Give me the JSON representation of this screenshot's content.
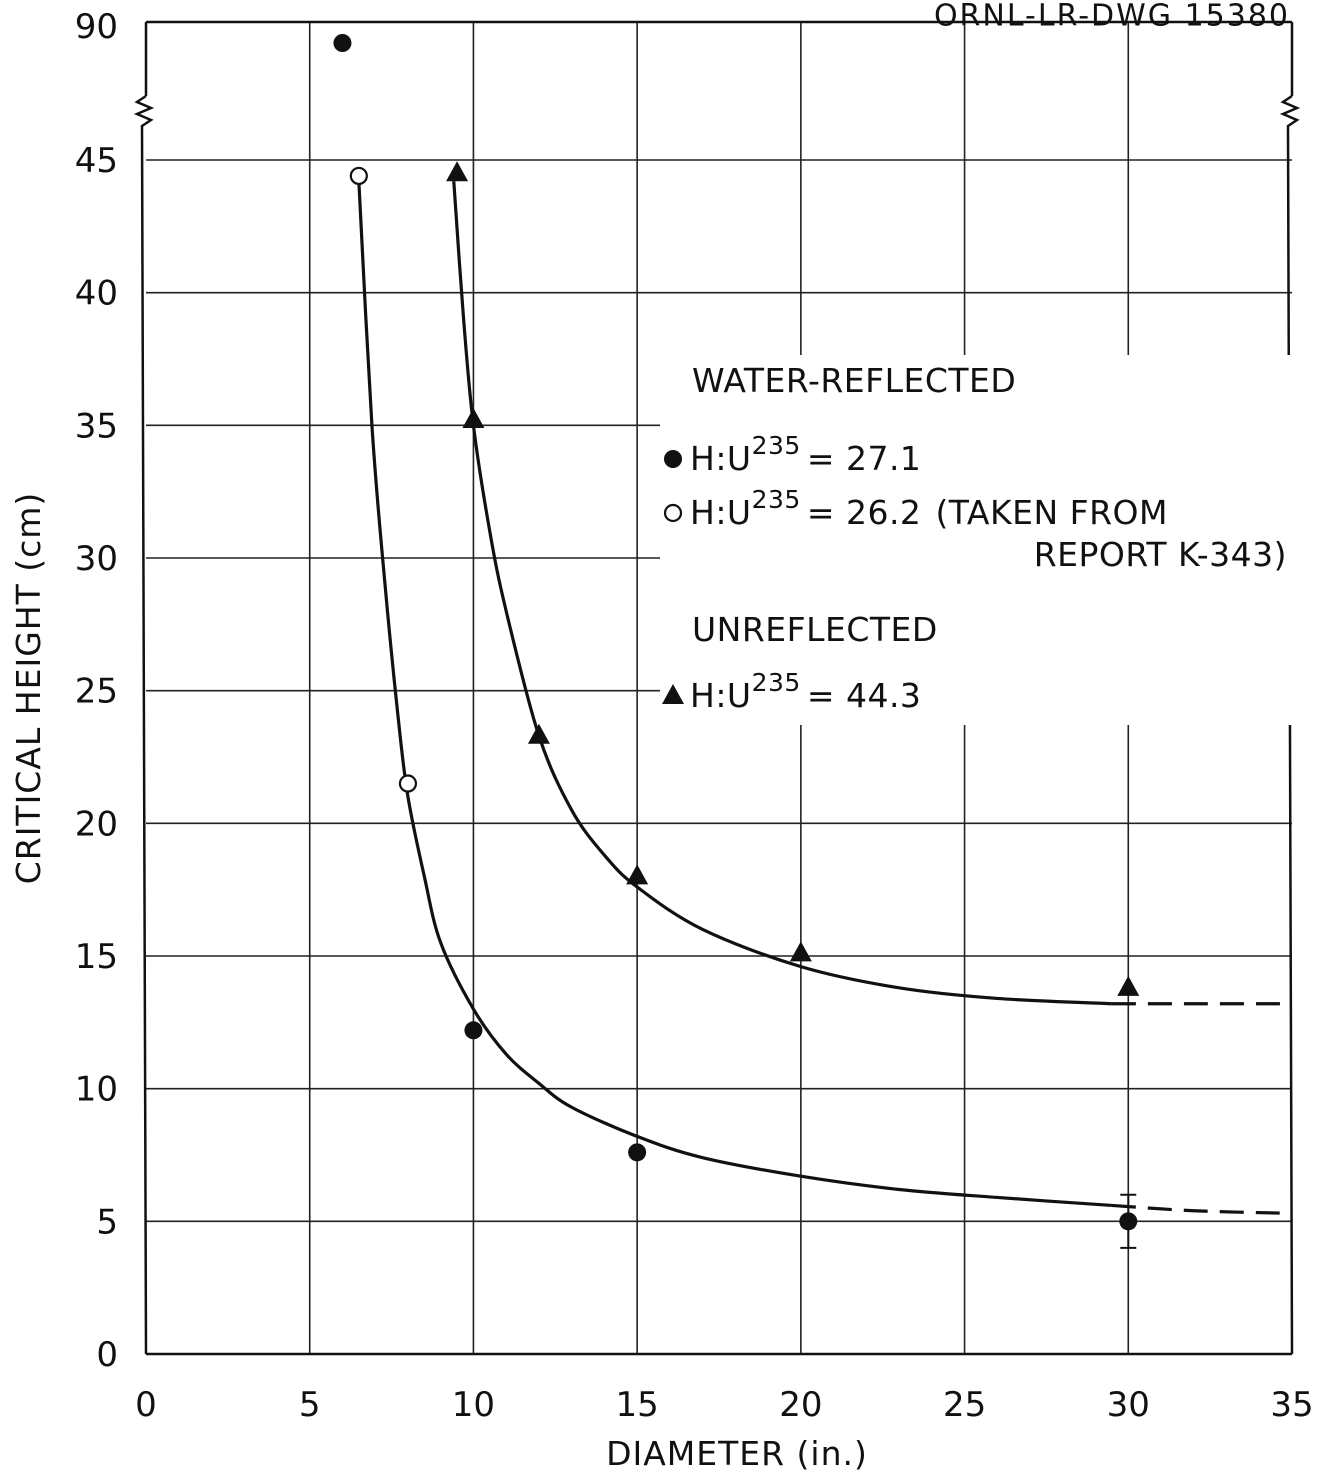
{
  "drawing_number": "ORNL-LR-DWG 15380",
  "chart_data": {
    "type": "scatter",
    "xlabel": "DIAMETER (in.)",
    "ylabel": "CRITICAL HEIGHT (cm)",
    "xlim": [
      0,
      35
    ],
    "ylim": [
      0,
      45
    ],
    "x_ticks": [
      "0",
      "5",
      "10",
      "15",
      "20",
      "25",
      "30",
      "35"
    ],
    "y_ticks": [
      "0",
      "5",
      "10",
      "15",
      "20",
      "25",
      "30",
      "35",
      "40",
      "45"
    ],
    "y_break_tick": "90",
    "y_axis_break": true,
    "grid": true,
    "legend": {
      "placement": "center-right",
      "groups": [
        {
          "heading": "WATER-REFLECTED",
          "entries": [
            {
              "marker": "filled-circle",
              "label": "H:U",
              "superscript": "235",
              "value": "= 27.1",
              "note": ""
            },
            {
              "marker": "open-circle",
              "label": "H:U",
              "superscript": "235",
              "value": "= 26.2",
              "note": "(TAKEN FROM",
              "note2": "REPORT K-343)"
            }
          ]
        },
        {
          "heading": "UNREFLECTED",
          "entries": [
            {
              "marker": "filled-triangle",
              "label": "H:U",
              "superscript": "235",
              "value": "= 44.3",
              "note": ""
            }
          ]
        }
      ]
    },
    "series": [
      {
        "marker": "filled-circle",
        "points": [
          {
            "x": 6,
            "y": 90,
            "beyond_break": true
          },
          {
            "x": 10,
            "y": 12.2
          },
          {
            "x": 15,
            "y": 7.6
          },
          {
            "x": 30,
            "y": 5.0,
            "error": [
              4.0,
              6.0
            ]
          }
        ]
      },
      {
        "marker": "open-circle",
        "points": [
          {
            "x": 6.5,
            "y": 44.4
          },
          {
            "x": 8,
            "y": 21.5
          }
        ]
      },
      {
        "marker": "filled-triangle",
        "points": [
          {
            "x": 9.5,
            "y": 44.5
          },
          {
            "x": 10,
            "y": 35.2
          },
          {
            "x": 12,
            "y": 23.3
          },
          {
            "x": 15,
            "y": 18.0
          },
          {
            "x": 20,
            "y": 15.1
          },
          {
            "x": 30,
            "y": 13.8
          }
        ]
      }
    ],
    "curves": [
      {
        "name_ref": "water-reflected",
        "points": [
          [
            6.5,
            44.2
          ],
          [
            6.9,
            35
          ],
          [
            7.3,
            29
          ],
          [
            7.7,
            24
          ],
          [
            8,
            21
          ],
          [
            8.5,
            18
          ],
          [
            9,
            15.5
          ],
          [
            10,
            13
          ],
          [
            11,
            11.3
          ],
          [
            12,
            10.2
          ],
          [
            13,
            9.3
          ],
          [
            15,
            8.2
          ],
          [
            17,
            7.4
          ],
          [
            20,
            6.7
          ],
          [
            23,
            6.2
          ],
          [
            26,
            5.9
          ],
          [
            29.5,
            5.6
          ]
        ],
        "dashed_extension": [
          [
            29.5,
            5.6
          ],
          [
            32,
            5.4
          ],
          [
            35,
            5.3
          ]
        ]
      },
      {
        "name_ref": "unreflected",
        "points": [
          [
            9.4,
            44.2
          ],
          [
            9.7,
            39
          ],
          [
            10,
            35
          ],
          [
            10.5,
            31
          ],
          [
            11,
            28
          ],
          [
            12,
            23.3
          ],
          [
            13,
            20.5
          ],
          [
            14,
            18.8
          ],
          [
            15,
            17.6
          ],
          [
            17,
            16
          ],
          [
            20,
            14.6
          ],
          [
            23,
            13.8
          ],
          [
            26,
            13.4
          ],
          [
            29.5,
            13.2
          ]
        ],
        "dashed_extension": [
          [
            29.5,
            13.2
          ],
          [
            32,
            13.2
          ],
          [
            35,
            13.2
          ]
        ]
      }
    ]
  }
}
